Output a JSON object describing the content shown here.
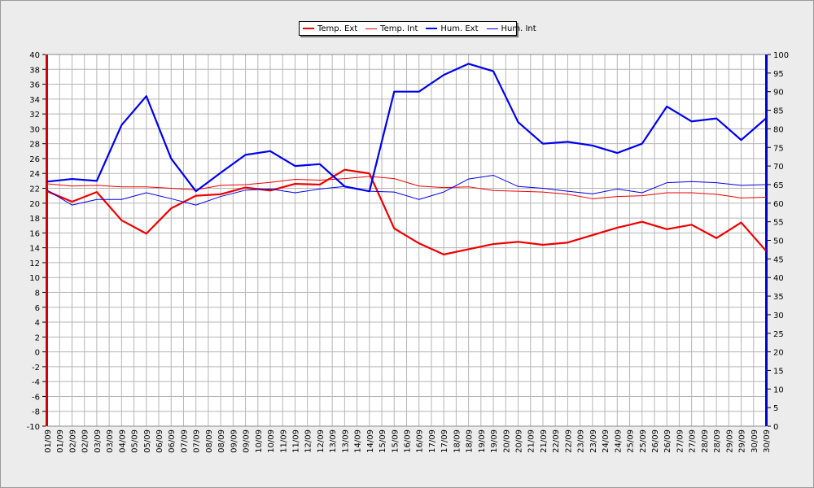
{
  "chart_data": {
    "type": "line",
    "title": "",
    "xlabel": "",
    "ylabel_left": "",
    "ylabel_right": "",
    "categories": [
      "01/09",
      "01/09",
      "02/09",
      "02/09",
      "03/09",
      "03/09",
      "04/09",
      "05/09",
      "05/09",
      "06/09",
      "06/09",
      "07/09",
      "07/09",
      "08/09",
      "08/09",
      "09/09",
      "09/09",
      "10/09",
      "10/09",
      "11/09",
      "11/09",
      "12/09",
      "12/09",
      "13/09",
      "13/09",
      "14/09",
      "14/09",
      "15/09",
      "15/09",
      "16/09",
      "16/09",
      "17/09",
      "17/09",
      "18/09",
      "18/09",
      "19/09",
      "19/09",
      "20/09",
      "20/09",
      "21/09",
      "21/09",
      "22/09",
      "22/09",
      "23/09",
      "23/09",
      "24/09",
      "24/09",
      "25/09",
      "25/09",
      "26/09",
      "26/09",
      "27/09",
      "27/09",
      "28/09",
      "28/09",
      "29/09",
      "29/09",
      "30/09",
      "30/09"
    ],
    "y_left": {
      "min": -10,
      "max": 40,
      "step": 2,
      "color": "#cc0000"
    },
    "y_right": {
      "min": 0,
      "max": 100,
      "step": 5,
      "color": "#0000cc"
    },
    "grid": true,
    "legend_position": "top-center",
    "series": [
      {
        "name": "Temp. Ext",
        "axis": "left",
        "color": "#ee0000",
        "weight": "bold",
        "points": [
          [
            0,
            21.6
          ],
          [
            2,
            20.2
          ],
          [
            4,
            21.5
          ],
          [
            6,
            17.7
          ],
          [
            8,
            15.9
          ],
          [
            10,
            19.3
          ],
          [
            12,
            21.0
          ],
          [
            14,
            21.2
          ],
          [
            16,
            22.1
          ],
          [
            18,
            21.7
          ],
          [
            20,
            22.6
          ],
          [
            22,
            22.5
          ],
          [
            24,
            24.5
          ],
          [
            26,
            24.0
          ],
          [
            28,
            16.6
          ],
          [
            30,
            14.6
          ],
          [
            32,
            13.1
          ],
          [
            34,
            13.8
          ],
          [
            36,
            14.5
          ],
          [
            38,
            14.8
          ],
          [
            40,
            14.4
          ],
          [
            42,
            14.7
          ],
          [
            44,
            15.7
          ],
          [
            46,
            16.7
          ],
          [
            48,
            17.5
          ],
          [
            50,
            16.5
          ],
          [
            52,
            17.1
          ],
          [
            54,
            15.3
          ],
          [
            56,
            17.4
          ],
          [
            58,
            13.6
          ]
        ]
      },
      {
        "name": "Temp. Int",
        "axis": "left",
        "color": "#ee0000",
        "weight": "thin",
        "points": [
          [
            0,
            22.6
          ],
          [
            2,
            22.3
          ],
          [
            4,
            22.4
          ],
          [
            6,
            22.2
          ],
          [
            8,
            22.2
          ],
          [
            10,
            22.0
          ],
          [
            12,
            21.8
          ],
          [
            14,
            22.4
          ],
          [
            16,
            22.5
          ],
          [
            18,
            22.8
          ],
          [
            20,
            23.2
          ],
          [
            22,
            23.1
          ],
          [
            24,
            23.3
          ],
          [
            26,
            23.6
          ],
          [
            28,
            23.3
          ],
          [
            30,
            22.3
          ],
          [
            32,
            22.1
          ],
          [
            34,
            22.2
          ],
          [
            36,
            21.7
          ],
          [
            38,
            21.6
          ],
          [
            40,
            21.5
          ],
          [
            42,
            21.2
          ],
          [
            44,
            20.6
          ],
          [
            46,
            20.9
          ],
          [
            48,
            21.0
          ],
          [
            50,
            21.4
          ],
          [
            52,
            21.4
          ],
          [
            54,
            21.2
          ],
          [
            56,
            20.7
          ],
          [
            58,
            20.8
          ]
        ]
      },
      {
        "name": "Hum. Ext",
        "axis": "right",
        "color": "#0000ee",
        "weight": "bold",
        "points": [
          [
            0,
            65.8
          ],
          [
            2,
            66.5
          ],
          [
            4,
            66.0
          ],
          [
            6,
            81.0
          ],
          [
            8,
            88.8
          ],
          [
            10,
            72.0
          ],
          [
            12,
            63.2
          ],
          [
            14,
            68.2
          ],
          [
            16,
            73.0
          ],
          [
            18,
            74.0
          ],
          [
            20,
            70.0
          ],
          [
            22,
            70.5
          ],
          [
            24,
            64.5
          ],
          [
            26,
            63.2
          ],
          [
            28,
            90.0
          ],
          [
            30,
            90.0
          ],
          [
            32,
            94.5
          ],
          [
            34,
            97.5
          ],
          [
            36,
            95.5
          ],
          [
            38,
            81.8
          ],
          [
            40,
            76.0
          ],
          [
            42,
            76.5
          ],
          [
            44,
            75.5
          ],
          [
            46,
            73.5
          ],
          [
            48,
            76.0
          ],
          [
            50,
            86.0
          ],
          [
            52,
            82.0
          ],
          [
            54,
            82.8
          ],
          [
            56,
            77.0
          ],
          [
            58,
            82.8
          ]
        ]
      },
      {
        "name": "Hum. Int",
        "axis": "right",
        "color": "#0000ee",
        "weight": "thin",
        "points": [
          [
            0,
            63.5
          ],
          [
            2,
            59.5
          ],
          [
            4,
            61.0
          ],
          [
            6,
            61.0
          ],
          [
            8,
            62.8
          ],
          [
            10,
            61.2
          ],
          [
            12,
            59.5
          ],
          [
            14,
            61.8
          ],
          [
            16,
            63.5
          ],
          [
            18,
            63.8
          ],
          [
            20,
            62.8
          ],
          [
            22,
            63.8
          ],
          [
            24,
            64.5
          ],
          [
            26,
            63.2
          ],
          [
            28,
            63.0
          ],
          [
            30,
            61.0
          ],
          [
            32,
            63.0
          ],
          [
            34,
            66.5
          ],
          [
            36,
            67.5
          ],
          [
            38,
            64.5
          ],
          [
            40,
            64.0
          ],
          [
            42,
            63.2
          ],
          [
            44,
            62.5
          ],
          [
            46,
            63.8
          ],
          [
            48,
            62.8
          ],
          [
            50,
            65.5
          ],
          [
            52,
            65.8
          ],
          [
            54,
            65.5
          ],
          [
            56,
            64.8
          ],
          [
            58,
            65.0
          ]
        ]
      }
    ]
  }
}
